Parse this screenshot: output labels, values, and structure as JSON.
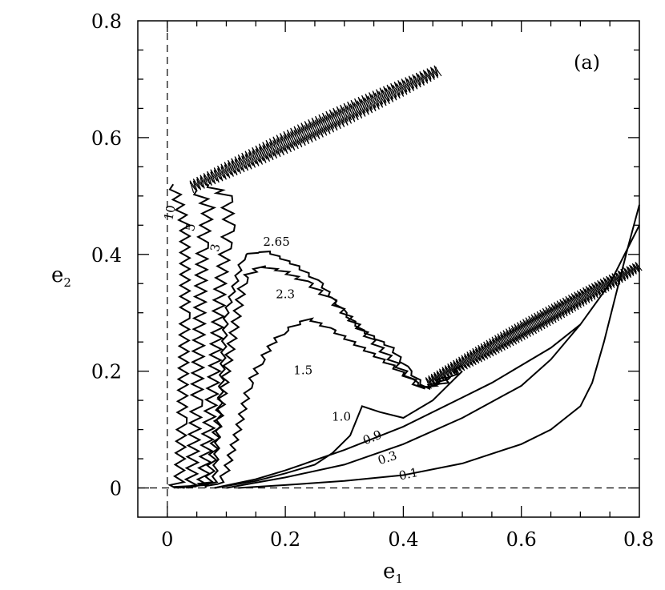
{
  "chart_data": {
    "type": "line",
    "title": "",
    "panel_label": "(a)",
    "xlabel": "e",
    "xlabel_sub": "1",
    "ylabel": "e",
    "ylabel_sub": "2",
    "xlim": [
      -0.05,
      0.8
    ],
    "ylim": [
      -0.05,
      0.8
    ],
    "x_ticks": [
      {
        "value": 0,
        "label": "0"
      },
      {
        "value": 0.2,
        "label": "0.2"
      },
      {
        "value": 0.4,
        "label": "0.4"
      },
      {
        "value": 0.6,
        "label": "0.6"
      },
      {
        "value": 0.8,
        "label": "0.8"
      }
    ],
    "y_ticks": [
      {
        "value": 0,
        "label": "0"
      },
      {
        "value": 0.2,
        "label": "0.2"
      },
      {
        "value": 0.4,
        "label": "0.4"
      },
      {
        "value": 0.6,
        "label": "0.6"
      },
      {
        "value": 0.8,
        "label": "0.8"
      }
    ],
    "grid": false,
    "reference_lines": [
      {
        "orientation": "vertical",
        "value": 0,
        "style": "dashed"
      },
      {
        "orientation": "horizontal",
        "value": 0,
        "style": "dashed"
      }
    ],
    "series": [
      {
        "name": "0.1",
        "label_pos": [
          0.41,
          0.017
        ],
        "label_rot": -12,
        "points": [
          [
            0.12,
            0
          ],
          [
            0.2,
            0.005
          ],
          [
            0.3,
            0.012
          ],
          [
            0.4,
            0.022
          ],
          [
            0.5,
            0.042
          ],
          [
            0.6,
            0.075
          ],
          [
            0.65,
            0.1
          ],
          [
            0.7,
            0.14
          ],
          [
            0.72,
            0.18
          ],
          [
            0.74,
            0.25
          ],
          [
            0.76,
            0.33
          ],
          [
            0.78,
            0.41
          ],
          [
            0.8,
            0.485
          ]
        ]
      },
      {
        "name": "0.3",
        "label_pos": [
          0.375,
          0.045
        ],
        "label_rot": -18,
        "points": [
          [
            0.1,
            0
          ],
          [
            0.2,
            0.018
          ],
          [
            0.3,
            0.04
          ],
          [
            0.4,
            0.075
          ],
          [
            0.5,
            0.12
          ],
          [
            0.6,
            0.175
          ],
          [
            0.65,
            0.22
          ],
          [
            0.7,
            0.28
          ],
          [
            0.75,
            0.35
          ],
          [
            0.8,
            0.45
          ]
        ]
      },
      {
        "name": "0.9",
        "label_pos": [
          0.35,
          0.08
        ],
        "label_rot": -22,
        "points": [
          [
            0.08,
            0
          ],
          [
            0.15,
            0.015
          ],
          [
            0.2,
            0.03
          ],
          [
            0.3,
            0.065
          ],
          [
            0.4,
            0.105
          ],
          [
            0.5,
            0.155
          ],
          [
            0.55,
            0.18
          ],
          [
            0.6,
            0.21
          ],
          [
            0.65,
            0.24
          ],
          [
            0.7,
            0.28
          ]
        ]
      },
      {
        "name": "1.0",
        "label_pos": [
          0.295,
          0.115
        ],
        "label_rot": 0,
        "points": [
          [
            0.08,
            0
          ],
          [
            0.15,
            0.012
          ],
          [
            0.2,
            0.025
          ],
          [
            0.25,
            0.04
          ],
          [
            0.28,
            0.06
          ],
          [
            0.31,
            0.09
          ],
          [
            0.33,
            0.14
          ],
          [
            0.36,
            0.13
          ],
          [
            0.4,
            0.12
          ],
          [
            0.45,
            0.15
          ],
          [
            0.5,
            0.2
          ]
        ]
      },
      {
        "name": "1.5",
        "label_pos": [
          0.23,
          0.195
        ],
        "label_rot": 0,
        "points": [
          [
            0.06,
            0
          ],
          [
            0.09,
            0.01
          ],
          [
            0.1,
            0.03
          ],
          [
            0.12,
            0.1
          ],
          [
            0.14,
            0.18
          ],
          [
            0.16,
            0.22
          ],
          [
            0.18,
            0.25
          ],
          [
            0.2,
            0.27
          ],
          [
            0.22,
            0.28
          ],
          [
            0.24,
            0.29
          ],
          [
            0.28,
            0.27
          ],
          [
            0.33,
            0.24
          ],
          [
            0.38,
            0.21
          ],
          [
            0.42,
            0.18
          ],
          [
            0.44,
            0.172
          ],
          [
            0.47,
            0.19
          ]
        ]
      },
      {
        "name": "2.3",
        "label_pos": [
          0.2,
          0.325
        ],
        "label_rot": 0,
        "points": [
          [
            0.03,
            0
          ],
          [
            0.07,
            0.01
          ],
          [
            0.1,
            0.2
          ],
          [
            0.13,
            0.36
          ],
          [
            0.16,
            0.38
          ],
          [
            0.2,
            0.37
          ],
          [
            0.24,
            0.35
          ],
          [
            0.28,
            0.32
          ],
          [
            0.32,
            0.28
          ],
          [
            0.36,
            0.24
          ],
          [
            0.4,
            0.2
          ],
          [
            0.43,
            0.17
          ],
          [
            0.47,
            0.18
          ],
          [
            0.5,
            0.21
          ]
        ]
      },
      {
        "name": "2.65",
        "label_pos": [
          0.185,
          0.415
        ],
        "label_rot": 0,
        "points": [
          [
            0.03,
            0
          ],
          [
            0.08,
            0.01
          ],
          [
            0.1,
            0.3
          ],
          [
            0.13,
            0.4
          ],
          [
            0.17,
            0.405
          ],
          [
            0.22,
            0.38
          ],
          [
            0.26,
            0.35
          ],
          [
            0.3,
            0.3
          ],
          [
            0.33,
            0.27
          ],
          [
            0.38,
            0.24
          ],
          [
            0.41,
            0.2
          ],
          [
            0.44,
            0.17
          ],
          [
            0.48,
            0.19
          ]
        ]
      },
      {
        "name": "3",
        "label_pos": [
          0.088,
          0.41
        ],
        "label_rot": -78,
        "points": [
          [
            0.02,
            0
          ],
          [
            0.06,
            0.005
          ],
          [
            0.08,
            0.2
          ],
          [
            0.09,
            0.35
          ],
          [
            0.1,
            0.42
          ],
          [
            0.105,
            0.45
          ],
          [
            0.1,
            0.5
          ],
          [
            0.07,
            0.52
          ]
        ]
      },
      {
        "name": "5",
        "label_pos": [
          0.046,
          0.445
        ],
        "label_rot": -78,
        "points": [
          [
            0.01,
            0
          ],
          [
            0.04,
            0.005
          ],
          [
            0.05,
            0.15
          ],
          [
            0.055,
            0.3
          ],
          [
            0.06,
            0.42
          ],
          [
            0.07,
            0.48
          ],
          [
            0.05,
            0.51
          ]
        ]
      },
      {
        "name": "10",
        "label_pos": [
          0.011,
          0.47
        ],
        "label_rot": -78,
        "points": [
          [
            0.005,
            0
          ],
          [
            0.02,
            0.01
          ],
          [
            0.025,
            0.12
          ],
          [
            0.03,
            0.3
          ],
          [
            0.03,
            0.45
          ],
          [
            0.01,
            0.52
          ]
        ]
      }
    ],
    "chaotic_bands": [
      {
        "from": [
          0.04,
          0.515
        ],
        "to": [
          0.46,
          0.715
        ],
        "description": "upper oscillating band"
      },
      {
        "from": [
          0.44,
          0.18
        ],
        "to": [
          0.8,
          0.38
        ],
        "description": "right oscillating band"
      }
    ]
  }
}
